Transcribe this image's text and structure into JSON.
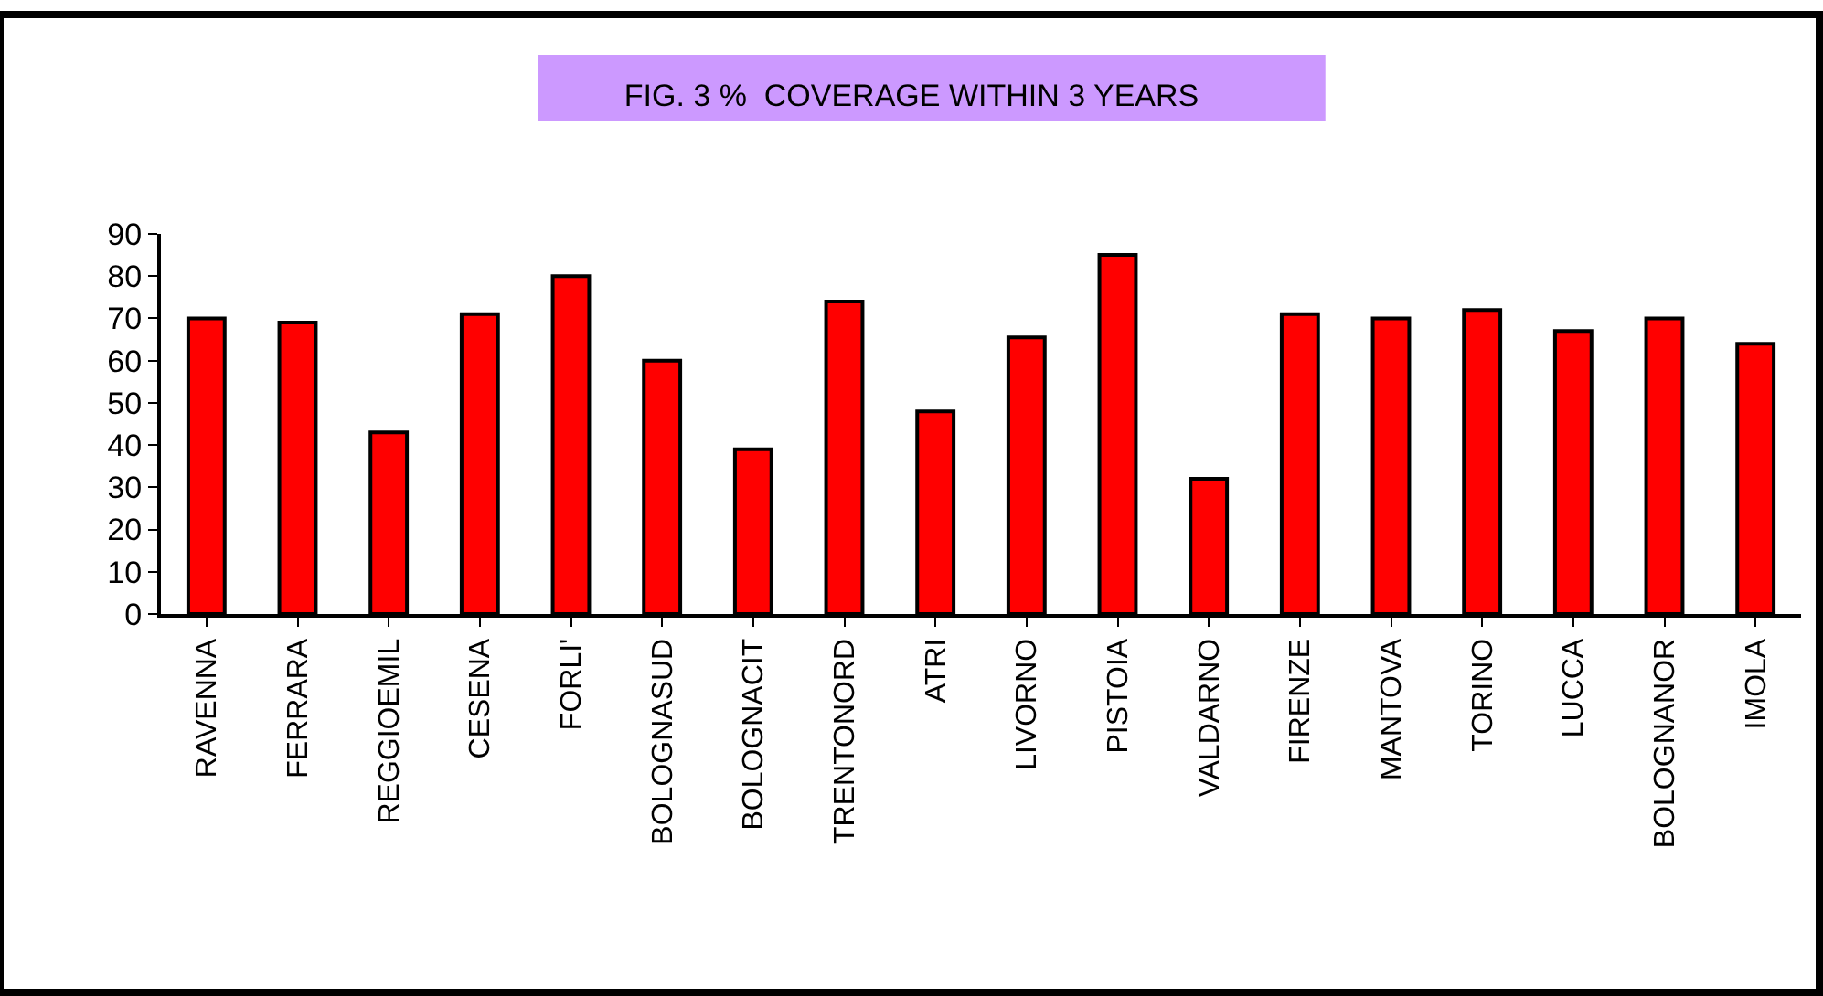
{
  "chart_data": {
    "type": "bar",
    "title": "FIG. 3 %  COVERAGE WITHIN 3 YEARS",
    "categories": [
      "RAVENNA",
      "FERRARA",
      "REGGIOEMIL",
      "CESENA",
      "FORLI'",
      "BOLOGNASUD",
      "BOLOGNACIT",
      "TRENTONORD",
      "ATRI",
      "LIVORNO",
      "PISTOIA",
      "VALDARNO",
      "FIRENZE",
      "MANTOVA",
      "TORINO",
      "LUCCA",
      "BOLOGNANOR",
      "IMOLA"
    ],
    "values": [
      70,
      69,
      43,
      71,
      80,
      60,
      39,
      74,
      48,
      65.5,
      85,
      32,
      71,
      70,
      72,
      67,
      70,
      64
    ],
    "color": "#ff0000",
    "ylim": [
      0,
      90
    ],
    "yticks": [
      0,
      10,
      20,
      30,
      40,
      50,
      60,
      70,
      80,
      90
    ]
  }
}
